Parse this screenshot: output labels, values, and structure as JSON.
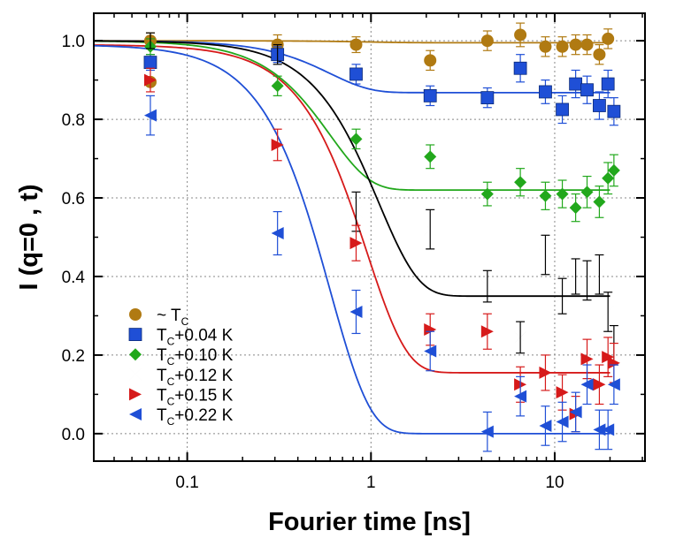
{
  "chart_data": {
    "type": "scatter",
    "xscale": "log",
    "xlim": [
      0.031,
      31
    ],
    "ylim": [
      -0.07,
      1.07
    ],
    "xlabel": "Fourier time [ns]",
    "ylabel": "I (q=0 , t)",
    "x_ticks": [
      {
        "value": 0.1,
        "label": "0.1"
      },
      {
        "value": 1,
        "label": "1"
      },
      {
        "value": 10,
        "label": "10"
      }
    ],
    "y_ticks": [
      {
        "value": 0.0,
        "label": "0.0"
      },
      {
        "value": 0.2,
        "label": "0.2"
      },
      {
        "value": 0.4,
        "label": "0.4"
      },
      {
        "value": 0.6,
        "label": "0.6"
      },
      {
        "value": 0.8,
        "label": "0.8"
      },
      {
        "value": 1.0,
        "label": "1.0"
      }
    ],
    "grid": true,
    "legend_position": "bottom-left",
    "series": [
      {
        "name": "~ TC",
        "legend_main": "~ T",
        "legend_sub": "C",
        "legend_suffix": "",
        "marker": "circle",
        "color": "#b07a12",
        "fit": {
          "baseline": 1.0,
          "plateau": 0.995,
          "tau": 1.0
        },
        "points": [
          {
            "x": 0.063,
            "y": 0.895,
            "err": 0
          },
          {
            "x": 0.063,
            "y": 1.0,
            "err": 0.02
          },
          {
            "x": 0.31,
            "y": 0.99,
            "err": 0.025
          },
          {
            "x": 0.83,
            "y": 0.99,
            "err": 0.02
          },
          {
            "x": 2.1,
            "y": 0.95,
            "err": 0.025
          },
          {
            "x": 4.3,
            "y": 1.0,
            "err": 0.025
          },
          {
            "x": 6.5,
            "y": 1.015,
            "err": 0.03
          },
          {
            "x": 8.9,
            "y": 0.985,
            "err": 0.025
          },
          {
            "x": 11.0,
            "y": 0.985,
            "err": 0.025
          },
          {
            "x": 13.0,
            "y": 0.99,
            "err": 0.025
          },
          {
            "x": 15.0,
            "y": 0.99,
            "err": 0.025
          },
          {
            "x": 17.5,
            "y": 0.965,
            "err": 0.025
          },
          {
            "x": 19.5,
            "y": 1.005,
            "err": 0.025
          }
        ]
      },
      {
        "name": "TC+0.04 K",
        "legend_main": "T",
        "legend_sub": "C",
        "legend_suffix": "+0.04 K",
        "marker": "square",
        "color": "#1f4fd6",
        "fit": {
          "baseline": 1.0,
          "plateau": 0.868,
          "tau": 0.6
        },
        "points": [
          {
            "x": 0.063,
            "y": 0.945,
            "err": 0.02
          },
          {
            "x": 0.31,
            "y": 0.965,
            "err": 0.02
          },
          {
            "x": 0.83,
            "y": 0.915,
            "err": 0.025
          },
          {
            "x": 2.1,
            "y": 0.86,
            "err": 0.025
          },
          {
            "x": 4.3,
            "y": 0.855,
            "err": 0.025
          },
          {
            "x": 6.5,
            "y": 0.93,
            "err": 0.035
          },
          {
            "x": 8.9,
            "y": 0.87,
            "err": 0.03
          },
          {
            "x": 11.0,
            "y": 0.825,
            "err": 0.035
          },
          {
            "x": 13.0,
            "y": 0.89,
            "err": 0.035
          },
          {
            "x": 15.0,
            "y": 0.875,
            "err": 0.035
          },
          {
            "x": 17.5,
            "y": 0.835,
            "err": 0.035
          },
          {
            "x": 19.5,
            "y": 0.89,
            "err": 0.035
          },
          {
            "x": 21.0,
            "y": 0.82,
            "err": 0.035
          }
        ]
      },
      {
        "name": "TC+0.10 K",
        "legend_main": "T",
        "legend_sub": "C",
        "legend_suffix": "+0.10 K",
        "marker": "diamond",
        "color": "#22a81c",
        "fit": {
          "baseline": 1.0,
          "plateau": 0.62,
          "tau": 0.6
        },
        "points": [
          {
            "x": 0.063,
            "y": 0.985,
            "err": 0.02
          },
          {
            "x": 0.31,
            "y": 0.885,
            "err": 0.025
          },
          {
            "x": 0.83,
            "y": 0.75,
            "err": 0.025
          },
          {
            "x": 2.1,
            "y": 0.705,
            "err": 0.03
          },
          {
            "x": 4.3,
            "y": 0.61,
            "err": 0.03
          },
          {
            "x": 6.5,
            "y": 0.64,
            "err": 0.035
          },
          {
            "x": 8.9,
            "y": 0.605,
            "err": 0.035
          },
          {
            "x": 11.0,
            "y": 0.61,
            "err": 0.035
          },
          {
            "x": 13.0,
            "y": 0.575,
            "err": 0.035
          },
          {
            "x": 15.0,
            "y": 0.615,
            "err": 0.04
          },
          {
            "x": 17.5,
            "y": 0.59,
            "err": 0.04
          },
          {
            "x": 19.5,
            "y": 0.65,
            "err": 0.04
          },
          {
            "x": 21.0,
            "y": 0.67,
            "err": 0.04
          }
        ]
      },
      {
        "name": "TC+0.12 K",
        "legend_main": "T",
        "legend_sub": "C",
        "legend_suffix": "+0.12 K",
        "marker": "bowtie",
        "color": "#000000",
        "fit": {
          "baseline": 1.0,
          "plateau": 0.35,
          "tau": 1.1
        },
        "points": [
          {
            "x": 0.063,
            "y": 1.0,
            "err": 0.02
          },
          {
            "x": 0.31,
            "y": 0.965,
            "err": 0.025
          },
          {
            "x": 0.83,
            "y": 0.565,
            "err": 0.05
          },
          {
            "x": 2.1,
            "y": 0.52,
            "err": 0.05
          },
          {
            "x": 4.3,
            "y": 0.375,
            "err": 0.04
          },
          {
            "x": 6.5,
            "y": 0.245,
            "err": 0.04
          },
          {
            "x": 8.9,
            "y": 0.455,
            "err": 0.05
          },
          {
            "x": 11.0,
            "y": 0.35,
            "err": 0.045
          },
          {
            "x": 13.0,
            "y": 0.4,
            "err": 0.045
          },
          {
            "x": 15.0,
            "y": 0.39,
            "err": 0.05
          },
          {
            "x": 17.5,
            "y": 0.405,
            "err": 0.05
          },
          {
            "x": 19.5,
            "y": 0.31,
            "err": 0.05
          },
          {
            "x": 21.0,
            "y": 0.225,
            "err": 0.05
          }
        ]
      },
      {
        "name": "TC+0.15 K",
        "legend_main": "T",
        "legend_sub": "C",
        "legend_suffix": "+0.15 K",
        "marker": "triangle-right",
        "color": "#d61a1a",
        "fit": {
          "baseline": 0.99,
          "plateau": 0.155,
          "tau": 0.95
        },
        "points": [
          {
            "x": 0.063,
            "y": 0.9,
            "err": 0.03
          },
          {
            "x": 0.31,
            "y": 0.735,
            "err": 0.04
          },
          {
            "x": 0.83,
            "y": 0.485,
            "err": 0.045
          },
          {
            "x": 2.1,
            "y": 0.265,
            "err": 0.04
          },
          {
            "x": 4.3,
            "y": 0.26,
            "err": 0.045
          },
          {
            "x": 6.5,
            "y": 0.125,
            "err": 0.045
          },
          {
            "x": 8.9,
            "y": 0.155,
            "err": 0.045
          },
          {
            "x": 11.0,
            "y": 0.105,
            "err": 0.045
          },
          {
            "x": 13.0,
            "y": 0.05,
            "err": 0.045
          },
          {
            "x": 15.0,
            "y": 0.19,
            "err": 0.05
          },
          {
            "x": 17.5,
            "y": 0.125,
            "err": 0.05
          },
          {
            "x": 19.5,
            "y": 0.195,
            "err": 0.05
          },
          {
            "x": 21.0,
            "y": 0.18,
            "err": 0.05
          }
        ]
      },
      {
        "name": "TC+0.22 K",
        "legend_main": "T",
        "legend_sub": "C",
        "legend_suffix": "+0.22 K",
        "marker": "triangle-left",
        "color": "#1f4fd6",
        "fit": {
          "baseline": 0.99,
          "plateau": 0.0,
          "tau": 0.6
        },
        "points": [
          {
            "x": 0.063,
            "y": 0.81,
            "err": 0.05
          },
          {
            "x": 0.31,
            "y": 0.51,
            "err": 0.055
          },
          {
            "x": 0.83,
            "y": 0.31,
            "err": 0.055
          },
          {
            "x": 2.1,
            "y": 0.21,
            "err": 0.05
          },
          {
            "x": 4.3,
            "y": 0.005,
            "err": 0.05
          },
          {
            "x": 6.5,
            "y": 0.095,
            "err": 0.05
          },
          {
            "x": 8.9,
            "y": 0.02,
            "err": 0.05
          },
          {
            "x": 11.0,
            "y": 0.03,
            "err": 0.05
          },
          {
            "x": 13.0,
            "y": 0.055,
            "err": 0.05
          },
          {
            "x": 15.0,
            "y": 0.125,
            "err": 0.05
          },
          {
            "x": 17.5,
            "y": 0.01,
            "err": 0.05
          },
          {
            "x": 19.5,
            "y": 0.01,
            "err": 0.05
          },
          {
            "x": 21.0,
            "y": 0.125,
            "err": 0.05
          }
        ]
      }
    ]
  }
}
